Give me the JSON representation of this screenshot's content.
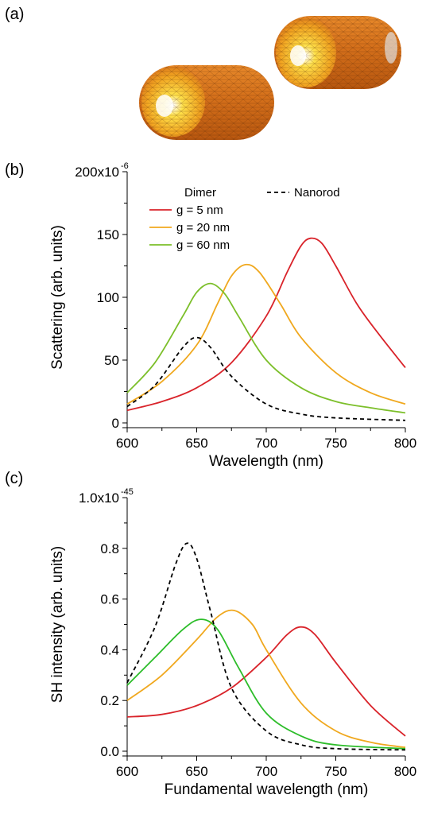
{
  "panels": {
    "a": "(a)",
    "b": "(b)",
    "c": "(c)"
  },
  "colors": {
    "g5": "#d9232a",
    "g20": "#f0a81e",
    "g60": "#7cbf2a",
    "g60_c": "#2dbd2a",
    "nanorod": "#000000",
    "rod_body": "#d9721c",
    "rod_highlight": "#ffe14a",
    "mesh_line": "#5a2a08"
  },
  "chart_data": [
    {
      "panel": "(b)",
      "type": "line",
      "xlabel": "Wavelength (nm)",
      "ylabel": "Scattering (arb. units)",
      "xlim": [
        600,
        800
      ],
      "ylim": [
        0,
        200
      ],
      "xticks": [
        "600",
        "650",
        "700",
        "750",
        "800"
      ],
      "yticks": [
        "0",
        "50",
        "100",
        "150",
        "200x10"
      ],
      "y_exponent": "-6",
      "legend_title": "Dimer",
      "legend_placement": "top",
      "grid": false,
      "series": [
        {
          "name": "g = 5 nm",
          "color": "#d9232a",
          "dash": false,
          "x": [
            600,
            625,
            650,
            675,
            700,
            715,
            725,
            732,
            740,
            750,
            765,
            780,
            800
          ],
          "y": [
            10,
            17,
            28,
            48,
            85,
            120,
            141,
            147,
            143,
            125,
            95,
            72,
            44
          ]
        },
        {
          "name": "g = 20 nm",
          "color": "#f0a81e",
          "dash": false,
          "x": [
            600,
            625,
            650,
            665,
            675,
            685,
            695,
            710,
            725,
            750,
            775,
            800
          ],
          "y": [
            15,
            33,
            62,
            95,
            117,
            126,
            120,
            95,
            68,
            40,
            24,
            15
          ]
        },
        {
          "name": "g = 60 nm",
          "color": "#7cbf2a",
          "dash": false,
          "x": [
            600,
            620,
            640,
            650,
            660,
            670,
            680,
            700,
            725,
            750,
            775,
            800
          ],
          "y": [
            24,
            48,
            85,
            104,
            111,
            103,
            85,
            50,
            28,
            17,
            12,
            8
          ]
        },
        {
          "name": "Nanorod",
          "color": "#000000",
          "dash": true,
          "x": [
            600,
            620,
            640,
            650,
            660,
            675,
            700,
            725,
            750,
            800
          ],
          "y": [
            13,
            30,
            60,
            68,
            60,
            37,
            15,
            7,
            4,
            2
          ]
        }
      ]
    },
    {
      "panel": "(c)",
      "type": "line",
      "xlabel": "Fundamental wavelength (nm)",
      "ylabel": "SH intensity (arb. units)",
      "xlim": [
        600,
        800
      ],
      "ylim": [
        0,
        1.0
      ],
      "xticks": [
        "600",
        "650",
        "700",
        "750",
        "800"
      ],
      "yticks": [
        "0.0",
        "0.2",
        "0.4",
        "0.6",
        "0.8",
        "1.0x10"
      ],
      "y_exponent": "-45",
      "grid": false,
      "series": [
        {
          "color": "#d9232a",
          "dash": false,
          "x": [
            600,
            625,
            650,
            675,
            700,
            715,
            725,
            735,
            750,
            775,
            800
          ],
          "y": [
            0.135,
            0.145,
            0.18,
            0.25,
            0.37,
            0.46,
            0.49,
            0.46,
            0.35,
            0.18,
            0.06
          ]
        },
        {
          "color": "#f0a81e",
          "dash": false,
          "x": [
            600,
            625,
            650,
            665,
            677,
            690,
            700,
            725,
            750,
            775,
            800
          ],
          "y": [
            0.2,
            0.3,
            0.44,
            0.53,
            0.555,
            0.5,
            0.4,
            0.19,
            0.08,
            0.035,
            0.015
          ]
        },
        {
          "color": "#2dbd2a",
          "dash": false,
          "x": [
            600,
            620,
            640,
            653,
            665,
            680,
            700,
            725,
            750,
            800
          ],
          "y": [
            0.26,
            0.37,
            0.48,
            0.52,
            0.48,
            0.33,
            0.15,
            0.06,
            0.025,
            0.01
          ]
        },
        {
          "color": "#000000",
          "dash": true,
          "x": [
            600,
            620,
            635,
            643,
            650,
            660,
            675,
            700,
            725,
            750,
            800
          ],
          "y": [
            0.27,
            0.49,
            0.74,
            0.82,
            0.76,
            0.55,
            0.25,
            0.08,
            0.025,
            0.01,
            0.005
          ]
        }
      ]
    }
  ]
}
